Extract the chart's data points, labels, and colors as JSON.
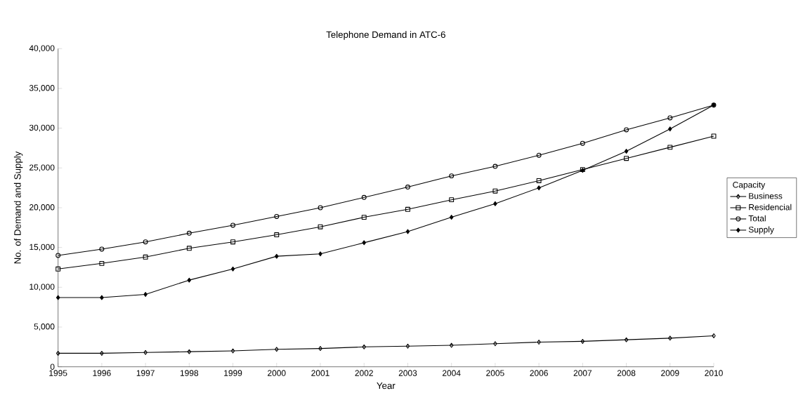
{
  "chart_data": {
    "type": "line",
    "title": "Telephone Demand in ATC-6",
    "xlabel": "Year",
    "ylabel": "No. of Demand and Supply",
    "legend_title": "Capacity",
    "legend": "right",
    "categories": [
      "1995",
      "1996",
      "1997",
      "1998",
      "1999",
      "2000",
      "2001",
      "2002",
      "2003",
      "2004",
      "2005",
      "2006",
      "2007",
      "2008",
      "2009",
      "2010"
    ],
    "ylim": [
      0,
      40000
    ],
    "yticks": [
      {
        "value": 0,
        "label": "0"
      },
      {
        "value": 5000,
        "label": "5,000"
      },
      {
        "value": 10000,
        "label": "10,000"
      },
      {
        "value": 15000,
        "label": "15,000"
      },
      {
        "value": 20000,
        "label": "20,000"
      },
      {
        "value": 25000,
        "label": "25,000"
      },
      {
        "value": 30000,
        "label": "30,000"
      },
      {
        "value": 35000,
        "label": "35,000"
      },
      {
        "value": 40000,
        "label": "40,000"
      }
    ],
    "grid": false,
    "series": [
      {
        "name": "Business",
        "color": "#000000",
        "marker": "diamond",
        "values": [
          1700,
          1700,
          1800,
          1900,
          2000,
          2200,
          2300,
          2500,
          2600,
          2700,
          2900,
          3100,
          3200,
          3400,
          3600,
          3900
        ]
      },
      {
        "name": "Residencial",
        "color": "#000000",
        "marker": "square",
        "values": [
          12300,
          13000,
          13800,
          14900,
          15700,
          16600,
          17600,
          18800,
          19800,
          21000,
          22100,
          23400,
          24800,
          26200,
          27600,
          29000
        ]
      },
      {
        "name": "Total",
        "color": "#000000",
        "marker": "circle",
        "values": [
          14000,
          14800,
          15700,
          16800,
          17800,
          18900,
          20000,
          21300,
          22600,
          24000,
          25200,
          26600,
          28100,
          29800,
          31300,
          32900
        ]
      },
      {
        "name": "Supply",
        "color": "#000000",
        "marker": "diamond*",
        "values": [
          8700,
          8700,
          9100,
          10900,
          12300,
          13900,
          14200,
          15600,
          17000,
          18800,
          20500,
          22500,
          24700,
          27100,
          29900,
          32900
        ]
      }
    ]
  }
}
